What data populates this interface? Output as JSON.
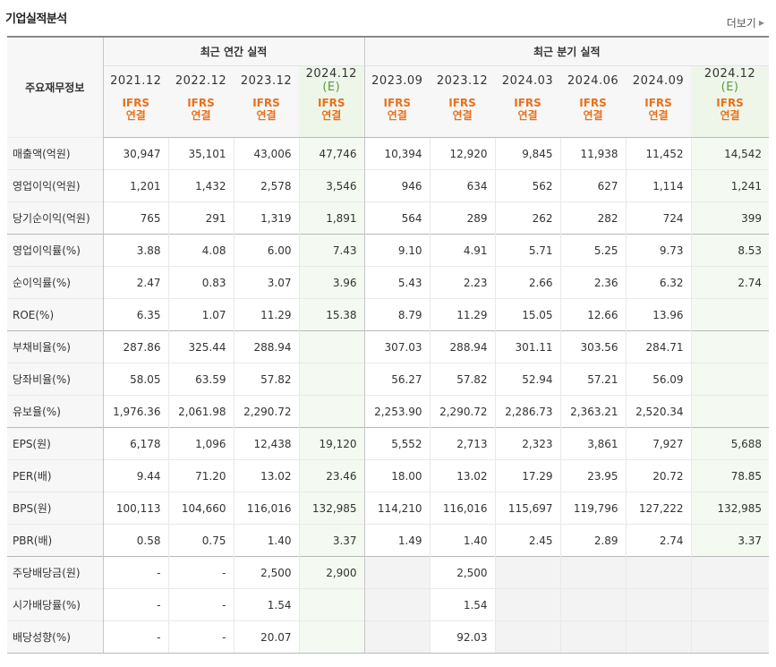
{
  "section_title": "기업실적분석",
  "more_label": "더보기",
  "table": {
    "stub_header": "주요재무정보",
    "group_annual": "최근 연간 실적",
    "group_quarterly": "최근 분기 실적",
    "columns": [
      {
        "period": "2021.12",
        "est": "",
        "acct1": "IFRS",
        "acct2": "연결"
      },
      {
        "period": "2022.12",
        "est": "",
        "acct1": "IFRS",
        "acct2": "연결"
      },
      {
        "period": "2023.12",
        "est": "",
        "acct1": "IFRS",
        "acct2": "연결"
      },
      {
        "period": "2024.12",
        "est": "(E)",
        "acct1": "IFRS",
        "acct2": "연결"
      },
      {
        "period": "2023.09",
        "est": "",
        "acct1": "IFRS",
        "acct2": "연결"
      },
      {
        "period": "2023.12",
        "est": "",
        "acct1": "IFRS",
        "acct2": "연결"
      },
      {
        "period": "2024.03",
        "est": "",
        "acct1": "IFRS",
        "acct2": "연결"
      },
      {
        "period": "2024.06",
        "est": "",
        "acct1": "IFRS",
        "acct2": "연결"
      },
      {
        "period": "2024.09",
        "est": "",
        "acct1": "IFRS",
        "acct2": "연결"
      },
      {
        "period": "2024.12",
        "est": "(E)",
        "acct1": "IFRS",
        "acct2": "연결"
      }
    ],
    "rows": [
      {
        "label": "매출액(억원)",
        "values": [
          "30,947",
          "35,101",
          "43,006",
          "47,746",
          "10,394",
          "12,920",
          "9,845",
          "11,938",
          "11,452",
          "14,542"
        ]
      },
      {
        "label": "영업이익(억원)",
        "values": [
          "1,201",
          "1,432",
          "2,578",
          "3,546",
          "946",
          "634",
          "562",
          "627",
          "1,114",
          "1,241"
        ]
      },
      {
        "label": "당기순이익(억원)",
        "values": [
          "765",
          "291",
          "1,319",
          "1,891",
          "564",
          "289",
          "262",
          "282",
          "724",
          "399"
        ]
      },
      {
        "label": "영업이익률(%)",
        "values": [
          "3.88",
          "4.08",
          "6.00",
          "7.43",
          "9.10",
          "4.91",
          "5.71",
          "5.25",
          "9.73",
          "8.53"
        ]
      },
      {
        "label": "순이익률(%)",
        "values": [
          "2.47",
          "0.83",
          "3.07",
          "3.96",
          "5.43",
          "2.23",
          "2.66",
          "2.36",
          "6.32",
          "2.74"
        ]
      },
      {
        "label": "ROE(%)",
        "values": [
          "6.35",
          "1.07",
          "11.29",
          "15.38",
          "8.79",
          "11.29",
          "15.05",
          "12.66",
          "13.96",
          ""
        ]
      },
      {
        "label": "부채비율(%)",
        "values": [
          "287.86",
          "325.44",
          "288.94",
          "",
          "307.03",
          "288.94",
          "301.11",
          "303.56",
          "284.71",
          ""
        ]
      },
      {
        "label": "당좌비율(%)",
        "values": [
          "58.05",
          "63.59",
          "57.82",
          "",
          "56.27",
          "57.82",
          "52.94",
          "57.21",
          "56.09",
          ""
        ]
      },
      {
        "label": "유보율(%)",
        "values": [
          "1,976.36",
          "2,061.98",
          "2,290.72",
          "",
          "2,253.90",
          "2,290.72",
          "2,286.73",
          "2,363.21",
          "2,520.34",
          ""
        ]
      },
      {
        "label": "EPS(원)",
        "values": [
          "6,178",
          "1,096",
          "12,438",
          "19,120",
          "5,552",
          "2,713",
          "2,323",
          "3,861",
          "7,927",
          "5,688"
        ]
      },
      {
        "label": "PER(배)",
        "values": [
          "9.44",
          "71.20",
          "13.02",
          "23.46",
          "18.00",
          "13.02",
          "17.29",
          "23.95",
          "20.72",
          "78.85"
        ]
      },
      {
        "label": "BPS(원)",
        "values": [
          "100,113",
          "104,660",
          "116,016",
          "132,985",
          "114,210",
          "116,016",
          "115,697",
          "119,796",
          "127,222",
          "132,985"
        ]
      },
      {
        "label": "PBR(배)",
        "values": [
          "0.58",
          "0.75",
          "1.40",
          "3.37",
          "1.49",
          "1.40",
          "2.45",
          "2.89",
          "2.74",
          "3.37"
        ]
      },
      {
        "label": "주당배당금(원)",
        "values": [
          "-",
          "-",
          "2,500",
          "2,900",
          "",
          "2,500",
          "",
          "",
          "",
          ""
        ]
      },
      {
        "label": "시가배당률(%)",
        "values": [
          "-",
          "-",
          "1.54",
          "",
          "",
          "1.54",
          "",
          "",
          "",
          ""
        ]
      },
      {
        "label": "배당성향(%)",
        "values": [
          "-",
          "-",
          "20.07",
          "",
          "",
          "92.03",
          "",
          "",
          "",
          ""
        ]
      }
    ]
  }
}
